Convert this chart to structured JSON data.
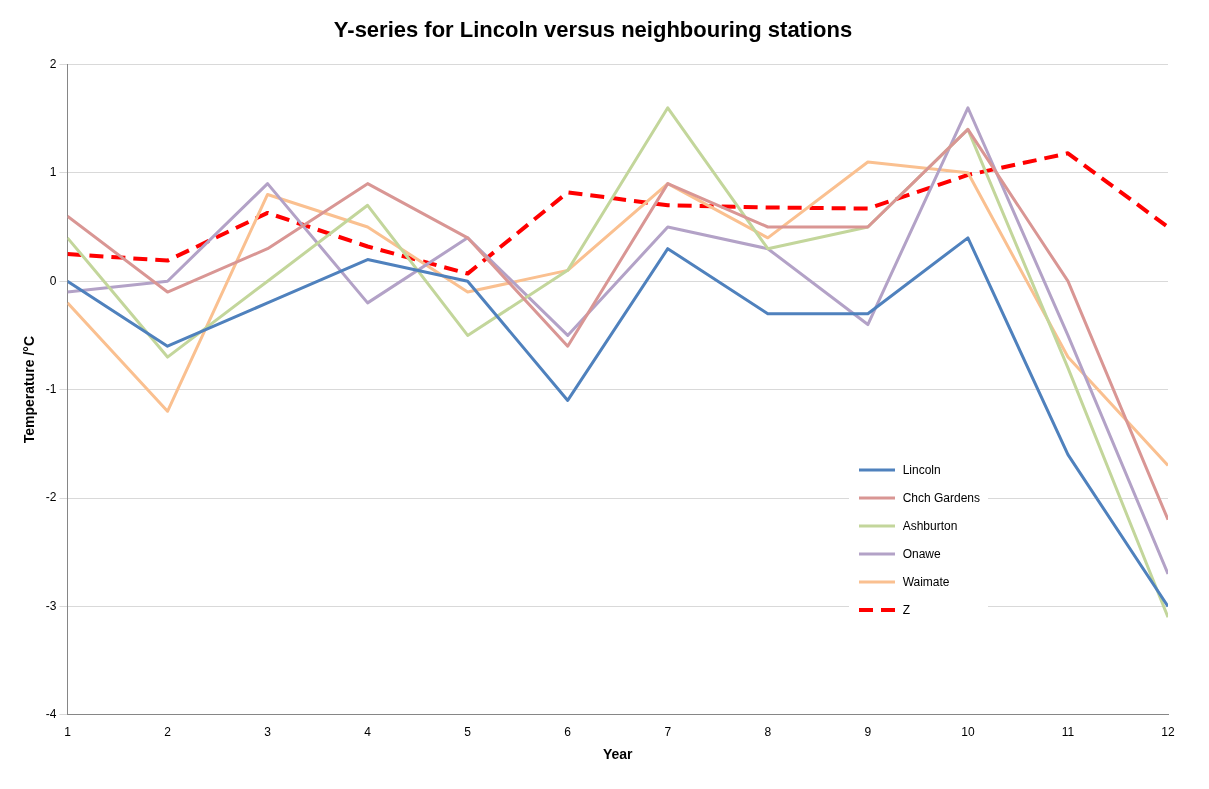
{
  "chart_data": {
    "type": "line",
    "title": "Y-series for Lincoln versus neighbouring stations",
    "xlabel": "Year",
    "ylabel": "Temperature /°C",
    "x": [
      1,
      2,
      3,
      4,
      5,
      6,
      7,
      8,
      9,
      10,
      11,
      12
    ],
    "series": [
      {
        "name": "Lincoln",
        "color": "#4f81bd",
        "values": [
          0,
          -0.6,
          -0.2,
          0.2,
          0,
          -1.1,
          0.3,
          -0.3,
          -0.3,
          0.4,
          -1.6,
          -3.0
        ]
      },
      {
        "name": "Chch Gardens",
        "color": "#d99694",
        "values": [
          0.6,
          -0.1,
          0.3,
          0.9,
          0.4,
          -0.6,
          0.9,
          0.5,
          0.5,
          1.4,
          0.0,
          -2.2
        ]
      },
      {
        "name": "Ashburton",
        "color": "#c3d69b",
        "values": [
          0.4,
          -0.7,
          0.0,
          0.7,
          -0.5,
          0.1,
          1.6,
          0.3,
          0.5,
          1.4,
          -0.8,
          -3.1
        ]
      },
      {
        "name": "Onawe",
        "color": "#b3a2c7",
        "values": [
          -0.1,
          0.0,
          0.9,
          -0.2,
          0.4,
          -0.5,
          0.5,
          0.3,
          -0.4,
          1.6,
          -0.5,
          -2.7
        ]
      },
      {
        "name": "Waimate",
        "color": "#fac090",
        "values": [
          -0.2,
          -1.2,
          0.8,
          0.5,
          -0.1,
          0.1,
          0.9,
          0.4,
          1.1,
          1.0,
          -0.7,
          -1.7
        ]
      },
      {
        "name": "Z",
        "color": "#ff0000",
        "line_style": "dashed",
        "values": [
          0.25,
          0.19,
          0.63,
          0.32,
          0.07,
          0.82,
          0.7,
          0.68,
          0.67,
          0.98,
          1.18,
          0.5
        ]
      }
    ],
    "xlim": [
      1,
      12
    ],
    "xticks": [
      1,
      2,
      3,
      4,
      5,
      6,
      7,
      8,
      9,
      10,
      11,
      12
    ],
    "ylim": [
      -4,
      2
    ],
    "yticks": [
      -4,
      -3,
      -2,
      -1,
      0,
      1,
      2
    ],
    "grid": "y",
    "legend": "bottom right",
    "marker": "none",
    "line_style": "solid"
  }
}
